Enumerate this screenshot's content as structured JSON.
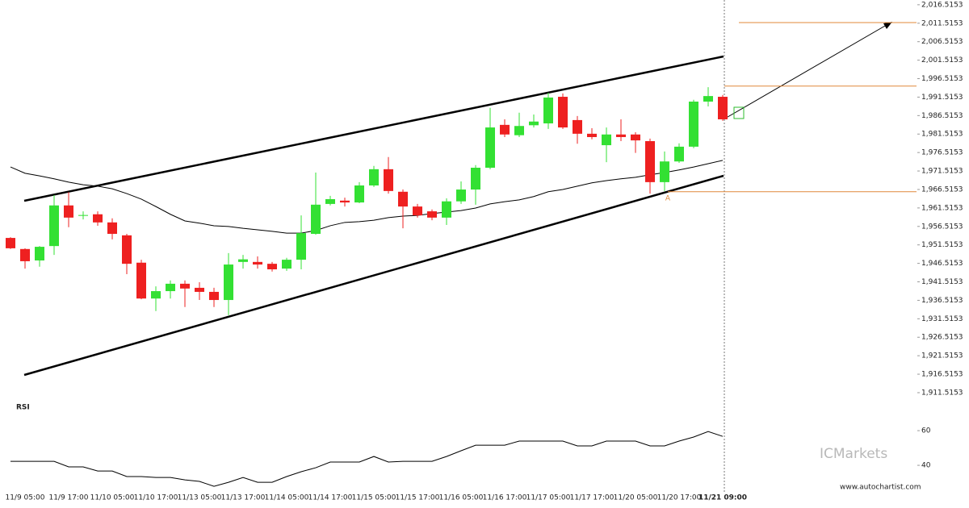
{
  "chart_data": {
    "type": "candlestick",
    "categories": [
      null,
      "11/9 05:00",
      null,
      null,
      "11/9 17:00",
      null,
      null,
      "11/10 05:00",
      null,
      null,
      "11/10 17:00",
      null,
      null,
      "11/13 05:00",
      null,
      null,
      "11/13 17:00",
      null,
      null,
      "11/14 05:00",
      null,
      null,
      "11/14 17:00",
      null,
      null,
      "11/15 05:00",
      null,
      null,
      "11/15 17:00",
      null,
      null,
      "11/16 05:00",
      null,
      null,
      "11/16 17:00",
      null,
      null,
      "11/17 05:00",
      null,
      null,
      "11/17 17:00",
      null,
      null,
      "11/20 05:00",
      null,
      null,
      "11/20 17:00",
      null,
      null,
      "11/21 09:00"
    ],
    "open": [
      1953.4,
      1950.4,
      1947.3,
      1951.2,
      1962.2,
      1959.4,
      1959.8,
      1957.6,
      1954.1,
      1946.7,
      1937.0,
      1939.0,
      1941.0,
      1939.9,
      1938.8,
      1936.6,
      1946.9,
      1946.9,
      1946.4,
      1945.1,
      1947.5,
      1954.5,
      1962.6,
      1963.5,
      1963.0,
      1967.6,
      1972.0,
      1965.9,
      1961.9,
      1960.6,
      1958.9,
      1963.3,
      1966.5,
      1972.4,
      1984.0,
      1981.2,
      1983.9,
      1984.4,
      1991.6,
      1985.3,
      1981.6,
      1978.5,
      1981.4,
      1981.4,
      1979.6,
      1968.5,
      1974.1,
      1978.1,
      1990.3,
      1991.6
    ],
    "high": [
      1953.6,
      1950.6,
      1951.2,
      1965.0,
      1965.8,
      1960.6,
      1960.6,
      1958.7,
      1954.5,
      1947.5,
      1940.3,
      1941.9,
      1941.9,
      1941.4,
      1939.9,
      1949.3,
      1948.8,
      1948.4,
      1946.9,
      1948.0,
      1959.5,
      1971.1,
      1964.8,
      1964.3,
      1968.5,
      1972.9,
      1975.3,
      1966.5,
      1962.6,
      1961.1,
      1964.1,
      1968.7,
      1973.1,
      1988.6,
      1985.5,
      1987.3,
      1986.8,
      1992.7,
      1992.5,
      1986.4,
      1983.1,
      1983.3,
      1985.5,
      1982.0,
      1980.3,
      1976.8,
      1979.0,
      1990.8,
      1994.2,
      1992.1
    ],
    "low": [
      1950.4,
      1945.1,
      1945.6,
      1948.8,
      1956.3,
      1958.4,
      1956.7,
      1953.0,
      1943.6,
      1936.8,
      1933.6,
      1937.0,
      1934.7,
      1936.6,
      1934.7,
      1932.5,
      1945.1,
      1945.1,
      1944.3,
      1944.5,
      1944.9,
      1954.3,
      1962.2,
      1961.9,
      1962.8,
      1967.2,
      1965.4,
      1956.0,
      1958.9,
      1958.2,
      1956.9,
      1962.6,
      1962.4,
      1972.0,
      1980.7,
      1980.7,
      1983.3,
      1982.9,
      1982.9,
      1978.9,
      1980.1,
      1973.9,
      1979.6,
      1976.4,
      1965.4,
      1966.1,
      1973.7,
      1977.7,
      1989.0,
      1985.1
    ],
    "close": [
      1950.6,
      1947.1,
      1951.0,
      1962.2,
      1958.9,
      1959.6,
      1957.6,
      1954.5,
      1946.4,
      1937.0,
      1939.0,
      1941.0,
      1939.7,
      1938.8,
      1936.6,
      1946.2,
      1947.6,
      1946.2,
      1944.9,
      1947.5,
      1954.7,
      1962.4,
      1963.9,
      1963.0,
      1967.6,
      1972.0,
      1966.1,
      1961.9,
      1959.5,
      1958.9,
      1963.3,
      1966.5,
      1972.4,
      1983.3,
      1981.4,
      1983.7,
      1984.9,
      1991.4,
      1983.3,
      1981.6,
      1980.7,
      1981.4,
      1980.7,
      1979.8,
      1968.5,
      1974.1,
      1978.1,
      1990.3,
      1991.8,
      1985.5
    ],
    "up_color": "#33e033",
    "down_color": "#ee2020",
    "moving_average": {
      "color": "#000000",
      "values": [
        1972.6,
        1970.9,
        1970.2,
        1969.4,
        1968.5,
        1967.8,
        1967.4,
        1966.7,
        1965.4,
        1963.9,
        1961.9,
        1959.8,
        1958.0,
        1957.4,
        1956.7,
        1956.5,
        1956.0,
        1955.6,
        1955.2,
        1954.7,
        1954.7,
        1955.4,
        1956.7,
        1957.6,
        1957.8,
        1958.2,
        1958.9,
        1959.3,
        1959.5,
        1960.0,
        1960.4,
        1960.8,
        1961.5,
        1962.6,
        1963.2,
        1963.7,
        1964.6,
        1965.9,
        1966.5,
        1967.4,
        1968.3,
        1968.9,
        1969.4,
        1969.8,
        1970.5,
        1971.1,
        1971.8,
        1972.6,
        1973.5,
        1974.4
      ]
    },
    "levels": {
      "color": "#e0883a",
      "values": [
        2011.7,
        1994.5,
        1965.9
      ]
    },
    "annotation": "A",
    "ylim": [
      1910.2,
      2017.8
    ],
    "yticks": [
      {
        "value": 1911.5153,
        "label": "1,911.5153"
      },
      {
        "value": 1916.5153,
        "label": "1,916.5153"
      },
      {
        "value": 1921.5153,
        "label": "1,921.5153"
      },
      {
        "value": 1926.5153,
        "label": "1,926.5153"
      },
      {
        "value": 1931.5153,
        "label": "1,931.5153"
      },
      {
        "value": 1936.5153,
        "label": "1,936.5153"
      },
      {
        "value": 1941.5153,
        "label": "1,941.5153"
      },
      {
        "value": 1946.5153,
        "label": "1,946.5153"
      },
      {
        "value": 1951.5153,
        "label": "1,951.5153"
      },
      {
        "value": 1956.5153,
        "label": "1,956.5153"
      },
      {
        "value": 1961.5153,
        "label": "1,961.5153"
      },
      {
        "value": 1966.5153,
        "label": "1,966.5153"
      },
      {
        "value": 1971.5153,
        "label": "1,971.5153"
      },
      {
        "value": 1976.5153,
        "label": "1,976.5153"
      },
      {
        "value": 1981.5153,
        "label": "1,981.5153"
      },
      {
        "value": 1986.5153,
        "label": "1,986.5153"
      },
      {
        "value": 1991.5153,
        "label": "1,991.5153"
      },
      {
        "value": 1996.5153,
        "label": "1,996.5153"
      },
      {
        "value": 2001.5153,
        "label": "2,001.5153"
      },
      {
        "value": 2006.5153,
        "label": "2,006.5153"
      },
      {
        "value": 2011.5153,
        "label": "2,011.5153"
      },
      {
        "value": 2016.5153,
        "label": "2,016.5153"
      }
    ],
    "rsi": {
      "title": "RSI",
      "color": "#000000",
      "ylim": [
        27,
        71.2
      ],
      "yticks": [
        40,
        60
      ],
      "values": [
        42.3,
        42.3,
        42.3,
        42.3,
        39.1,
        39.1,
        36.7,
        36.7,
        33.5,
        33.5,
        33.0,
        33.0,
        31.6,
        30.7,
        27.9,
        30.2,
        33.0,
        30.2,
        30.2,
        33.5,
        36.3,
        38.6,
        41.9,
        41.9,
        41.9,
        45.1,
        41.9,
        42.3,
        42.3,
        42.3,
        45.1,
        48.4,
        51.6,
        51.6,
        51.6,
        54.0,
        54.0,
        54.0,
        54.0,
        51.2,
        51.2,
        54.0,
        54.0,
        54.0,
        51.2,
        51.2,
        54.0,
        56.3,
        59.5,
        56.7
      ]
    },
    "watermark": "ICMarkets",
    "source": "www.autochartist.com"
  }
}
